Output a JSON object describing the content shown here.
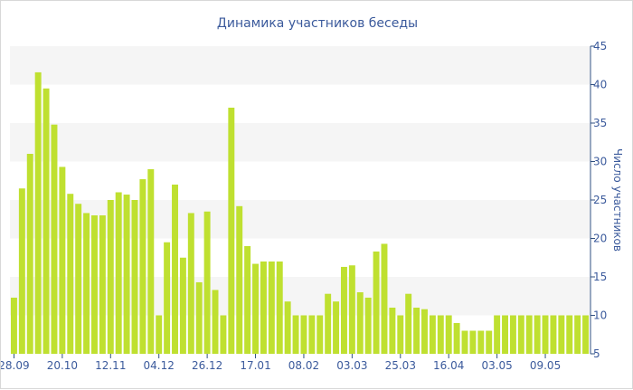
{
  "chart_data": {
    "type": "bar",
    "title": "Динамика участников беседы",
    "ylabel": "Число участников",
    "xlabel": "",
    "ylim": [
      5,
      45
    ],
    "yticks": [
      5,
      10,
      15,
      20,
      25,
      30,
      35,
      40,
      45
    ],
    "y_axis_side": "right",
    "grid": "alternating horizontal bands",
    "bar_color": "#bfe030",
    "band_color": "#f5f5f5",
    "text_color": "#3b5a9c",
    "x_tick_labels": [
      {
        "index": 0,
        "label": "28.09"
      },
      {
        "index": 6,
        "label": "20.10"
      },
      {
        "index": 12,
        "label": "12.11"
      },
      {
        "index": 18,
        "label": "04.12"
      },
      {
        "index": 24,
        "label": "26.12"
      },
      {
        "index": 30,
        "label": "17.01"
      },
      {
        "index": 36,
        "label": "08.02"
      },
      {
        "index": 42,
        "label": "03.03"
      },
      {
        "index": 48,
        "label": "25.03"
      },
      {
        "index": 54,
        "label": "16.04"
      },
      {
        "index": 60,
        "label": "03.05"
      },
      {
        "index": 66,
        "label": "09.05"
      }
    ],
    "values": [
      12.3,
      26.5,
      31.0,
      41.6,
      39.5,
      34.8,
      29.3,
      25.8,
      24.5,
      23.3,
      23.0,
      23.0,
      25.0,
      26.0,
      25.7,
      25.0,
      27.7,
      29.0,
      10.0,
      19.5,
      27.0,
      17.5,
      23.3,
      14.3,
      23.5,
      13.3,
      10.0,
      37.0,
      24.2,
      19.0,
      16.7,
      17.0,
      17.0,
      17.0,
      11.8,
      10.0,
      10.0,
      10.0,
      10.0,
      12.8,
      11.8,
      16.3,
      16.5,
      13.0,
      12.3,
      18.3,
      19.3,
      11.0,
      10.0,
      12.8,
      11.0,
      10.8,
      10.0,
      10.0,
      10.0,
      9.0,
      8.0,
      8.0,
      8.0,
      8.0,
      10.0,
      10.0,
      10.0,
      10.0,
      10.0,
      10.0,
      10.0,
      10.0,
      10.0,
      10.0,
      10.0,
      10.0
    ]
  }
}
